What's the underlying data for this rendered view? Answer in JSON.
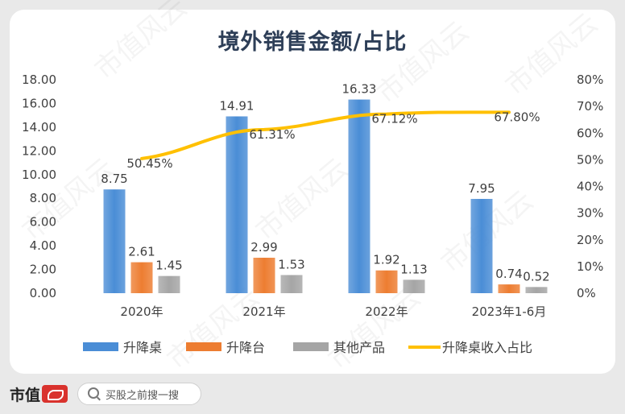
{
  "footer": {
    "brand": "市值",
    "search_placeholder": "买股之前搜一搜"
  },
  "chart_data": {
    "type": "bar",
    "title": "境外销售金额/占比",
    "categories": [
      "2020年",
      "2021年",
      "2022年",
      "2023年1-6月"
    ],
    "series": [
      {
        "name": "升降桌",
        "values": [
          8.75,
          14.91,
          16.33,
          7.95
        ],
        "labels": [
          "8.75",
          "14.91",
          "16.33",
          "7.95"
        ],
        "color": "#4a8dd6"
      },
      {
        "name": "升降台",
        "values": [
          2.61,
          2.99,
          1.92,
          0.74
        ],
        "labels": [
          "2.61",
          "2.99",
          "1.92",
          "0.74"
        ],
        "color": "#ed7d31"
      },
      {
        "name": "其他产品",
        "values": [
          1.45,
          1.53,
          1.13,
          0.52
        ],
        "labels": [
          "1.45",
          "1.53",
          "1.13",
          "0.52"
        ],
        "color": "#a5a5a5"
      }
    ],
    "line": {
      "name": "升降桌收入占比",
      "values": [
        50.45,
        61.31,
        67.12,
        67.8
      ],
      "labels": [
        "50.45%",
        "61.31%",
        "67.12%",
        "67.80%"
      ],
      "color": "#ffc000",
      "axis": "right"
    },
    "ylim": [
      0,
      18
    ],
    "y_ticks": [
      "0.00",
      "2.00",
      "4.00",
      "6.00",
      "8.00",
      "10.00",
      "12.00",
      "14.00",
      "16.00",
      "18.00"
    ],
    "y2lim": [
      0,
      80
    ],
    "y2_ticks": [
      "0%",
      "10%",
      "20%",
      "30%",
      "40%",
      "50%",
      "60%",
      "70%",
      "80%"
    ],
    "grid": false,
    "legend": "bottom",
    "watermark": "市值风云"
  }
}
